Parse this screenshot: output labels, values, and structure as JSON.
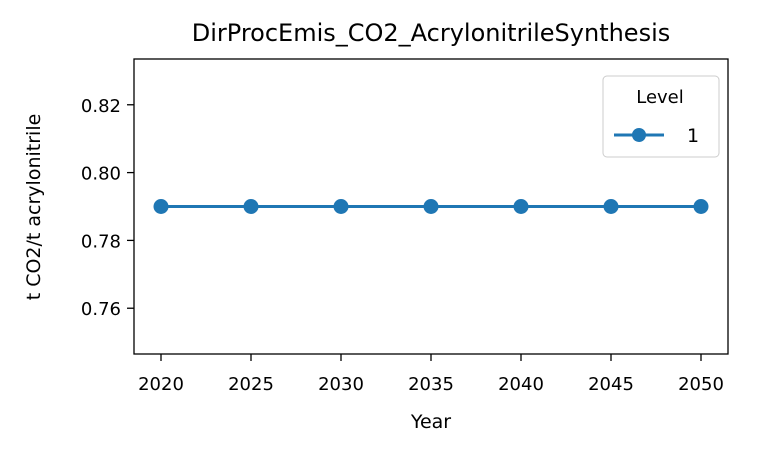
{
  "chart_data": {
    "type": "line",
    "title": "DirProcEmis_CO2_AcrylonitrileSynthesis",
    "xlabel": "Year",
    "ylabel": "t CO2/t acrylonitrile",
    "x": [
      2020,
      2025,
      2030,
      2035,
      2040,
      2045,
      2050
    ],
    "xticks": [
      "2020",
      "2025",
      "2030",
      "2035",
      "2040",
      "2045",
      "2050"
    ],
    "xlim": [
      2018.5,
      2051.5
    ],
    "yticks": [
      "0.76",
      "0.78",
      "0.80",
      "0.82"
    ],
    "ylim": [
      0.7465,
      0.8335
    ],
    "grid": false,
    "legend": {
      "title": "Level",
      "placement": "top-right"
    },
    "series": [
      {
        "name": "1",
        "color": "#1f77b4",
        "marker": "circle",
        "values": [
          0.79,
          0.79,
          0.79,
          0.79,
          0.79,
          0.79,
          0.79
        ]
      }
    ]
  }
}
